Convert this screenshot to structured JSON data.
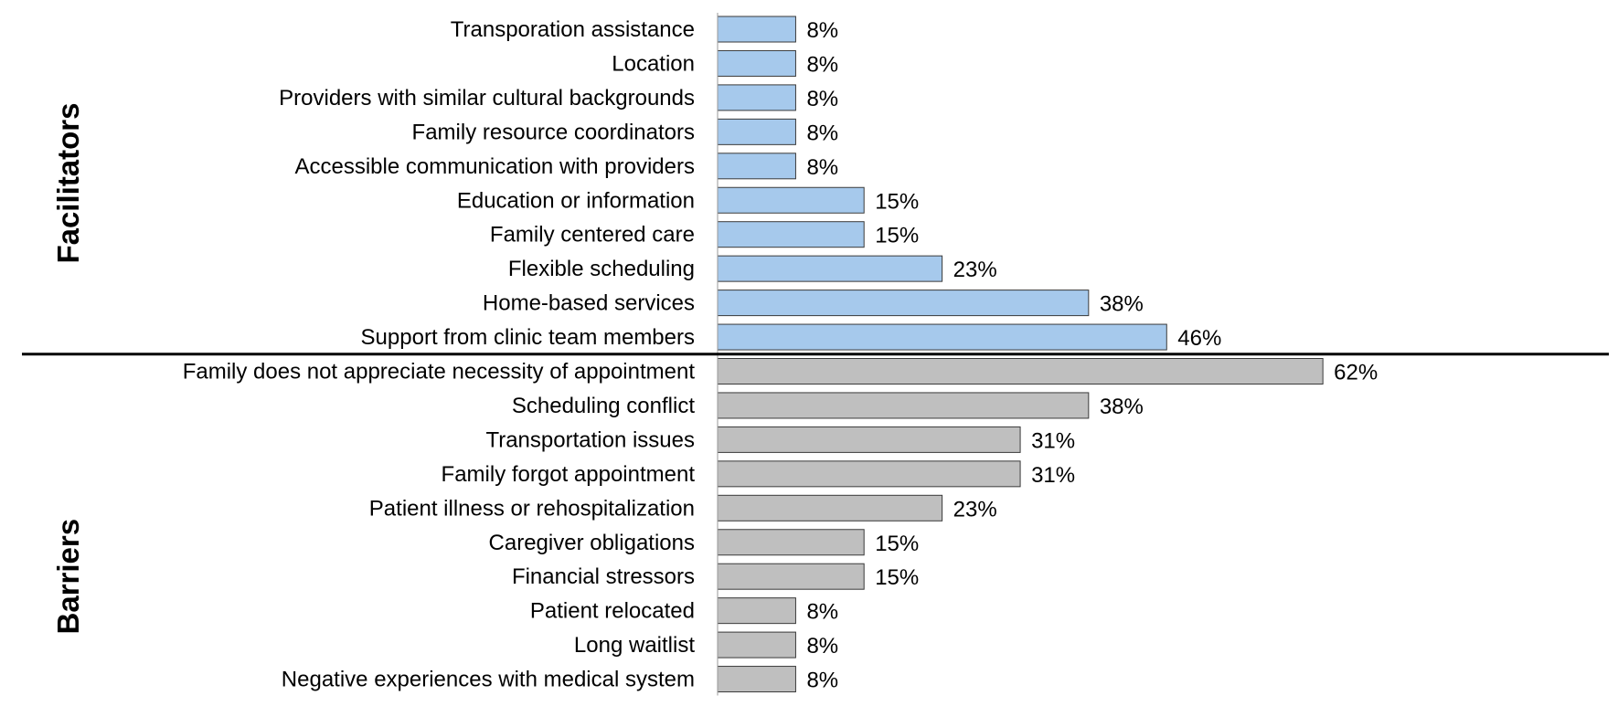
{
  "chart_data": {
    "type": "bar",
    "orientation": "horizontal",
    "value_suffix": "%",
    "xlim": [
      0,
      80
    ],
    "grid": false,
    "legend": "none",
    "groups": [
      {
        "name": "Facilitators",
        "color": "#a6c9ec",
        "categories": [
          "Transporation assistance",
          "Location",
          "Providers with similar cultural backgrounds",
          "Family resource coordinators",
          "Accessible communication with providers",
          "Education or information",
          "Family centered care",
          "Flexible scheduling",
          "Home-based services",
          "Support from clinic team members"
        ],
        "values": [
          8,
          8,
          8,
          8,
          8,
          15,
          15,
          23,
          38,
          46
        ]
      },
      {
        "name": "Barriers",
        "color": "#bfbfbf",
        "categories": [
          "Family does not appreciate necessity of appointment",
          "Scheduling conflict",
          "Transportation issues",
          "Family forgot appointment",
          "Patient illness or rehospitalization",
          "Caregiver obligations",
          "Financial stressors",
          "Patient relocated",
          "Long waitlist",
          "Negative experiences with medical system"
        ],
        "values": [
          62,
          38,
          31,
          31,
          23,
          15,
          15,
          8,
          8,
          8
        ]
      }
    ]
  }
}
